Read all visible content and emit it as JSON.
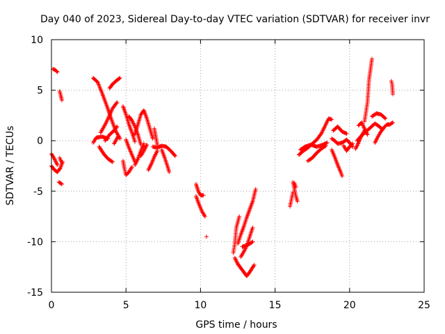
{
  "chart_data": {
    "type": "scatter",
    "title": "Day 040 of 2023, Sidereal Day-to-day VTEC variation (SDTVAR) for receiver invr",
    "xlabel": "GPS time / hours",
    "ylabel": "SDTVAR / TECUs",
    "xlim": [
      0,
      25
    ],
    "ylim": [
      -15,
      10
    ],
    "xticks": [
      0,
      5,
      10,
      15,
      20,
      25
    ],
    "yticks": [
      -15,
      -10,
      -5,
      0,
      5,
      10
    ],
    "xtick_labels": [
      "0",
      "5",
      "10",
      "15",
      "20",
      "25"
    ],
    "ytick_labels": [
      "-15",
      "-10",
      "-5",
      "0",
      "5",
      "10"
    ],
    "grid": true,
    "marker": "+",
    "color": "#ff0000",
    "tracks": [
      [
        [
          0.0,
          -2.5
        ],
        [
          0.2,
          -2.9
        ],
        [
          0.4,
          -3.1
        ],
        [
          0.6,
          -2.7
        ],
        [
          0.75,
          -2.1
        ]
      ],
      [
        [
          0.0,
          -1.3
        ],
        [
          0.2,
          -1.8
        ],
        [
          0.4,
          -2.4
        ]
      ],
      [
        [
          0.55,
          -1.7
        ],
        [
          0.7,
          -2.2
        ]
      ],
      [
        [
          0.1,
          7.1
        ],
        [
          0.25,
          7.0
        ],
        [
          0.4,
          6.8
        ]
      ],
      [
        [
          0.55,
          4.9
        ],
        [
          0.62,
          4.5
        ],
        [
          0.7,
          4.0
        ]
      ],
      [
        [
          0.5,
          -4.1
        ],
        [
          0.7,
          -4.3
        ]
      ],
      [
        [
          2.8,
          6.2
        ],
        [
          3.1,
          5.8
        ],
        [
          3.4,
          4.7
        ],
        [
          3.7,
          3.5
        ],
        [
          4.0,
          2.2
        ],
        [
          4.3,
          1.0
        ],
        [
          4.6,
          0.2
        ]
      ],
      [
        [
          2.8,
          -0.2
        ],
        [
          3.0,
          0.3
        ],
        [
          3.4,
          0.4
        ],
        [
          3.8,
          0.2
        ]
      ],
      [
        [
          3.2,
          -0.6
        ],
        [
          3.5,
          -1.3
        ],
        [
          3.8,
          -1.8
        ],
        [
          4.1,
          -2.1
        ]
      ],
      [
        [
          3.3,
          0.8
        ],
        [
          3.6,
          1.6
        ],
        [
          3.9,
          2.5
        ],
        [
          4.1,
          3.2
        ],
        [
          4.4,
          3.8
        ]
      ],
      [
        [
          3.6,
          0.0
        ],
        [
          3.9,
          0.6
        ],
        [
          4.2,
          1.0
        ],
        [
          4.4,
          1.4
        ]
      ],
      [
        [
          3.9,
          5.2
        ],
        [
          4.1,
          5.6
        ],
        [
          4.4,
          6.0
        ],
        [
          4.6,
          6.2
        ]
      ],
      [
        [
          4.2,
          -0.3
        ],
        [
          4.5,
          0.5
        ]
      ],
      [
        [
          4.8,
          3.4
        ],
        [
          5.0,
          2.6
        ],
        [
          5.2,
          1.6
        ],
        [
          5.4,
          0.8
        ],
        [
          5.6,
          -0.1
        ]
      ],
      [
        [
          4.8,
          -2.0
        ],
        [
          4.9,
          -2.8
        ],
        [
          5.0,
          -3.4
        ],
        [
          5.2,
          -3.1
        ],
        [
          5.4,
          -2.6
        ]
      ],
      [
        [
          5.0,
          0.1
        ],
        [
          5.2,
          -0.7
        ],
        [
          5.4,
          -1.4
        ],
        [
          5.6,
          -2.1
        ]
      ],
      [
        [
          5.2,
          2.4
        ],
        [
          5.4,
          2.0
        ],
        [
          5.6,
          1.4
        ],
        [
          5.8,
          0.6
        ],
        [
          6.0,
          -0.4
        ]
      ],
      [
        [
          5.6,
          -2.4
        ],
        [
          5.8,
          -1.8
        ],
        [
          6.0,
          -1.0
        ],
        [
          6.2,
          -0.3
        ]
      ],
      [
        [
          5.6,
          0.6
        ],
        [
          5.8,
          1.6
        ],
        [
          6.0,
          2.6
        ],
        [
          6.2,
          3.0
        ],
        [
          6.4,
          2.2
        ],
        [
          6.6,
          1.2
        ],
        [
          6.8,
          0.2
        ]
      ],
      [
        [
          6.0,
          -1.5
        ],
        [
          6.2,
          -1.0
        ],
        [
          6.4,
          -0.4
        ]
      ],
      [
        [
          6.5,
          -2.9
        ],
        [
          6.7,
          -2.3
        ],
        [
          6.9,
          -1.6
        ],
        [
          7.1,
          -1.0
        ]
      ],
      [
        [
          6.9,
          1.2
        ],
        [
          7.0,
          0.4
        ],
        [
          7.1,
          -0.4
        ]
      ],
      [
        [
          6.8,
          -0.6
        ],
        [
          7.1,
          -0.7
        ],
        [
          7.4,
          -0.5
        ],
        [
          7.7,
          -0.6
        ],
        [
          8.0,
          -1.0
        ],
        [
          8.3,
          -1.5
        ]
      ],
      [
        [
          7.4,
          -0.9
        ],
        [
          7.6,
          -1.7
        ],
        [
          7.8,
          -2.6
        ],
        [
          7.9,
          -3.1
        ]
      ],
      [
        [
          9.7,
          -4.3
        ],
        [
          9.85,
          -5.0
        ],
        [
          10.0,
          -5.4
        ],
        [
          10.2,
          -5.4
        ]
      ],
      [
        [
          9.7,
          -5.5
        ],
        [
          9.9,
          -6.3
        ],
        [
          10.1,
          -7.0
        ],
        [
          10.3,
          -7.5
        ]
      ],
      [
        [
          10.4,
          -9.5
        ]
      ],
      [
        [
          12.2,
          -11.1
        ],
        [
          12.3,
          -10.2
        ],
        [
          12.4,
          -8.6
        ],
        [
          12.6,
          -7.5
        ]
      ],
      [
        [
          12.3,
          -11.6
        ],
        [
          12.5,
          -12.2
        ],
        [
          12.7,
          -12.6
        ],
        [
          12.9,
          -13.0
        ],
        [
          13.1,
          -13.4
        ],
        [
          13.3,
          -13.0
        ],
        [
          13.6,
          -12.3
        ]
      ],
      [
        [
          12.5,
          -10.2
        ],
        [
          12.7,
          -9.3
        ],
        [
          12.9,
          -8.5
        ],
        [
          13.1,
          -7.6
        ],
        [
          13.3,
          -6.8
        ],
        [
          13.5,
          -6.0
        ],
        [
          13.7,
          -4.8
        ]
      ],
      [
        [
          12.7,
          -11.5
        ],
        [
          12.9,
          -11.0
        ],
        [
          13.1,
          -10.4
        ],
        [
          13.3,
          -9.5
        ],
        [
          13.5,
          -8.6
        ]
      ],
      [
        [
          12.8,
          -10.5
        ],
        [
          13.0,
          -10.4
        ],
        [
          13.3,
          -10.2
        ],
        [
          13.5,
          -10.0
        ]
      ],
      [
        [
          16.0,
          -6.5
        ],
        [
          16.1,
          -5.8
        ],
        [
          16.2,
          -5.1
        ]
      ],
      [
        [
          16.2,
          -4.1
        ],
        [
          16.3,
          -4.8
        ],
        [
          16.4,
          -5.5
        ],
        [
          16.5,
          -6.0
        ]
      ],
      [
        [
          16.3,
          -4.2
        ],
        [
          16.4,
          -4.6
        ]
      ],
      [
        [
          16.6,
          -1.4
        ],
        [
          16.9,
          -1.0
        ],
        [
          17.2,
          -0.7
        ],
        [
          17.5,
          -0.3
        ],
        [
          17.8,
          0.1
        ],
        [
          18.1,
          0.7
        ],
        [
          18.3,
          1.3
        ],
        [
          18.6,
          2.2
        ],
        [
          18.8,
          2.1
        ]
      ],
      [
        [
          16.7,
          -0.9
        ],
        [
          17.0,
          -0.6
        ],
        [
          17.4,
          -0.4
        ],
        [
          17.8,
          -0.6
        ],
        [
          18.2,
          -0.4
        ],
        [
          18.5,
          -0.2
        ]
      ],
      [
        [
          17.2,
          -2.0
        ],
        [
          17.5,
          -1.7
        ],
        [
          17.8,
          -1.2
        ],
        [
          18.1,
          -0.8
        ],
        [
          18.4,
          -0.5
        ]
      ],
      [
        [
          18.8,
          0.2
        ],
        [
          19.0,
          0.0
        ],
        [
          19.2,
          -0.3
        ],
        [
          19.5,
          -0.2
        ],
        [
          19.8,
          0.1
        ],
        [
          20.0,
          -0.2
        ],
        [
          20.2,
          -0.6
        ]
      ],
      [
        [
          18.8,
          -0.9
        ],
        [
          19.0,
          -1.6
        ],
        [
          19.2,
          -2.4
        ],
        [
          19.4,
          -3.1
        ],
        [
          19.5,
          -3.5
        ]
      ],
      [
        [
          18.9,
          1.0
        ],
        [
          19.2,
          1.4
        ],
        [
          19.5,
          0.9
        ],
        [
          19.8,
          0.7
        ]
      ],
      [
        [
          19.6,
          -0.5
        ],
        [
          19.8,
          -1.0
        ],
        [
          20.0,
          -0.6
        ],
        [
          20.2,
          -0.3
        ]
      ],
      [
        [
          20.4,
          -0.8
        ],
        [
          20.6,
          -0.2
        ],
        [
          20.8,
          0.5
        ],
        [
          21.0,
          1.0
        ]
      ],
      [
        [
          20.6,
          1.5
        ],
        [
          20.8,
          1.8
        ],
        [
          21.0,
          1.2
        ],
        [
          21.2,
          0.6
        ]
      ],
      [
        [
          21.0,
          1.9
        ],
        [
          21.2,
          3.8
        ],
        [
          21.3,
          6.0
        ],
        [
          21.5,
          8.1
        ]
      ],
      [
        [
          20.5,
          0.0
        ],
        [
          20.8,
          0.5
        ],
        [
          21.1,
          0.9
        ],
        [
          21.4,
          1.3
        ],
        [
          21.7,
          1.7
        ],
        [
          22.0,
          1.4
        ],
        [
          22.2,
          1.1
        ]
      ],
      [
        [
          21.5,
          2.4
        ],
        [
          21.8,
          2.7
        ],
        [
          22.1,
          2.6
        ],
        [
          22.4,
          2.2
        ]
      ],
      [
        [
          21.7,
          -0.2
        ],
        [
          21.9,
          0.4
        ],
        [
          22.1,
          0.9
        ],
        [
          22.3,
          1.3
        ],
        [
          22.5,
          1.6
        ],
        [
          22.7,
          1.6
        ],
        [
          22.9,
          1.8
        ]
      ],
      [
        [
          22.8,
          5.9
        ],
        [
          22.85,
          5.6
        ],
        [
          22.9,
          4.6
        ]
      ]
    ]
  }
}
